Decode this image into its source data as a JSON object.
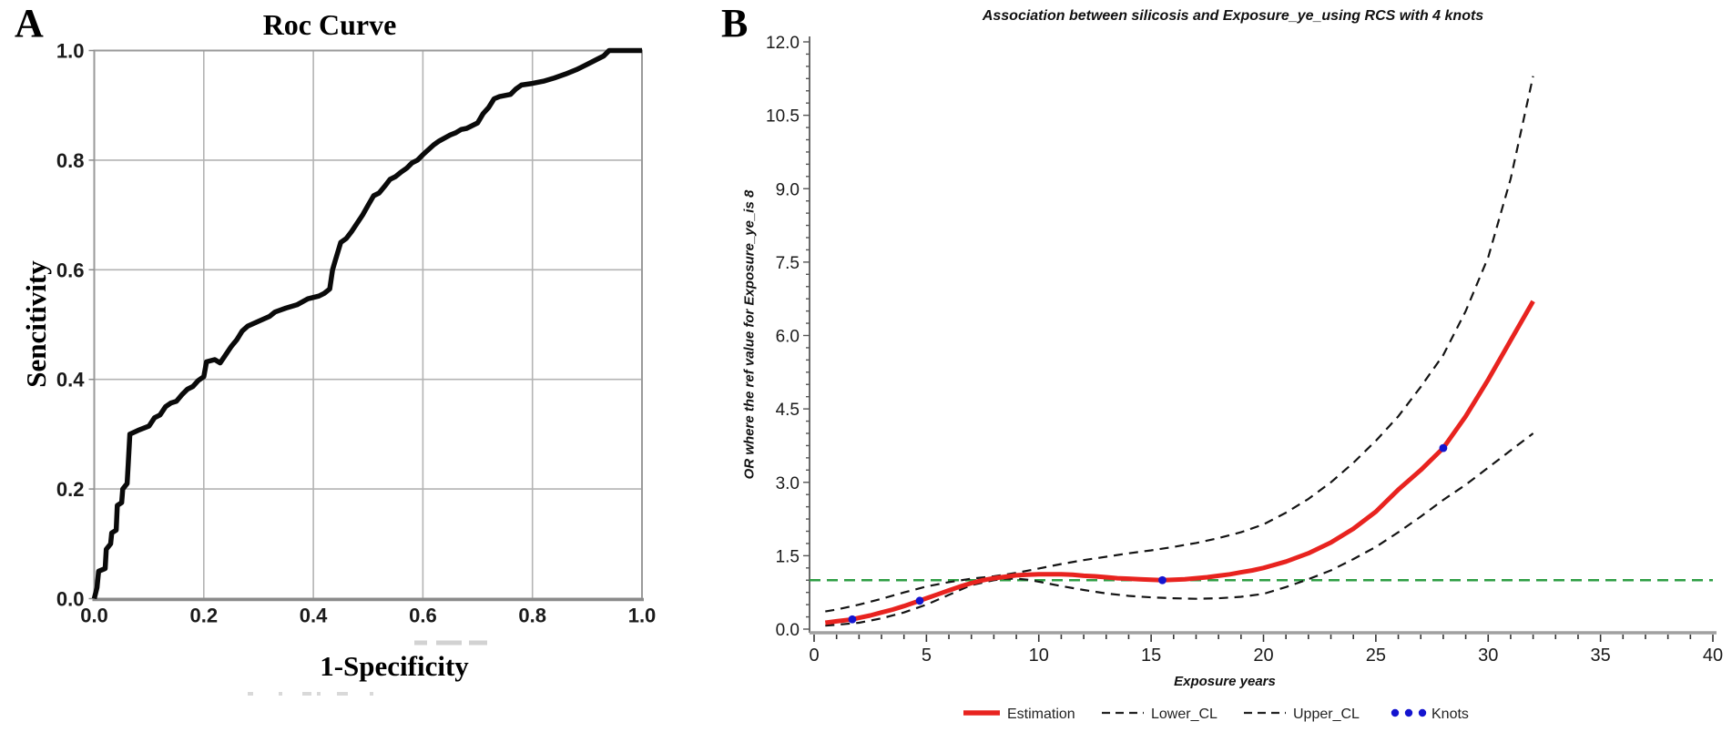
{
  "panels": {
    "a": {
      "label": "A",
      "title": "Roc Curve",
      "xlabel": "1-Specificity",
      "ylabel": "Sencitivity"
    },
    "b": {
      "label": "B",
      "title": "Association between silicosis and Exposure_ye_using RCS with 4 knots",
      "xlabel": "Exposure years",
      "ylabel": "OR where the ref value for Exposure_ye_is 8"
    }
  },
  "colors": {
    "roc_line": "#0a0a0a",
    "grid": "#b3b3b3",
    "frame": "#9a9a9a",
    "axis_dark": "#8a8a8a",
    "estimation": "#e8231f",
    "confidence": "#141414",
    "refline_green": "#2e9e44",
    "knots_blue": "#1414cf",
    "tick_text": "#1a1a1a"
  },
  "chart_data": [
    {
      "id": "roc",
      "type": "line",
      "title": "Roc Curve",
      "xlabel": "1-Specificity",
      "ylabel": "Sencitivity",
      "xlim": [
        0,
        1
      ],
      "ylim": [
        0,
        1
      ],
      "grid": true,
      "xticks": {
        "values": [
          0,
          0.2,
          0.4,
          0.6,
          0.8,
          1.0
        ],
        "labels": [
          "0.0",
          "0.2",
          "0.4",
          "0.6",
          "0.8",
          "1.0"
        ]
      },
      "yticks": {
        "values": [
          0,
          0.2,
          0.4,
          0.6,
          0.8,
          1.0
        ],
        "labels": [
          "0.0",
          "0.2",
          "0.4",
          "0.6",
          "0.8",
          "1.0"
        ]
      },
      "series": [
        {
          "name": "ROC curve",
          "color": "#0a0a0a",
          "width": 5.5,
          "points": [
            [
              0,
              0
            ],
            [
              0.005,
              0.02
            ],
            [
              0.008,
              0.05
            ],
            [
              0.02,
              0.055
            ],
            [
              0.022,
              0.09
            ],
            [
              0.03,
              0.1
            ],
            [
              0.032,
              0.12
            ],
            [
              0.04,
              0.125
            ],
            [
              0.042,
              0.17
            ],
            [
              0.05,
              0.175
            ],
            [
              0.052,
              0.2
            ],
            [
              0.06,
              0.21
            ],
            [
              0.062,
              0.245
            ],
            [
              0.065,
              0.3
            ],
            [
              0.08,
              0.307
            ],
            [
              0.1,
              0.315
            ],
            [
              0.11,
              0.33
            ],
            [
              0.12,
              0.335
            ],
            [
              0.13,
              0.35
            ],
            [
              0.14,
              0.357
            ],
            [
              0.15,
              0.36
            ],
            [
              0.16,
              0.372
            ],
            [
              0.17,
              0.382
            ],
            [
              0.18,
              0.387
            ],
            [
              0.19,
              0.398
            ],
            [
              0.2,
              0.405
            ],
            [
              0.205,
              0.432
            ],
            [
              0.22,
              0.436
            ],
            [
              0.23,
              0.43
            ],
            [
              0.24,
              0.445
            ],
            [
              0.25,
              0.46
            ],
            [
              0.26,
              0.472
            ],
            [
              0.27,
              0.488
            ],
            [
              0.28,
              0.497
            ],
            [
              0.3,
              0.506
            ],
            [
              0.32,
              0.515
            ],
            [
              0.33,
              0.523
            ],
            [
              0.35,
              0.53
            ],
            [
              0.37,
              0.536
            ],
            [
              0.39,
              0.547
            ],
            [
              0.41,
              0.552
            ],
            [
              0.42,
              0.557
            ],
            [
              0.43,
              0.565
            ],
            [
              0.435,
              0.6
            ],
            [
              0.44,
              0.617
            ],
            [
              0.45,
              0.65
            ],
            [
              0.46,
              0.657
            ],
            [
              0.47,
              0.67
            ],
            [
              0.48,
              0.685
            ],
            [
              0.49,
              0.7
            ],
            [
              0.5,
              0.718
            ],
            [
              0.51,
              0.735
            ],
            [
              0.52,
              0.74
            ],
            [
              0.53,
              0.752
            ],
            [
              0.54,
              0.765
            ],
            [
              0.55,
              0.77
            ],
            [
              0.56,
              0.778
            ],
            [
              0.57,
              0.785
            ],
            [
              0.58,
              0.795
            ],
            [
              0.59,
              0.8
            ],
            [
              0.6,
              0.81
            ],
            [
              0.62,
              0.828
            ],
            [
              0.63,
              0.835
            ],
            [
              0.65,
              0.846
            ],
            [
              0.66,
              0.85
            ],
            [
              0.67,
              0.856
            ],
            [
              0.68,
              0.858
            ],
            [
              0.7,
              0.868
            ],
            [
              0.71,
              0.885
            ],
            [
              0.72,
              0.896
            ],
            [
              0.73,
              0.912
            ],
            [
              0.74,
              0.916
            ],
            [
              0.76,
              0.92
            ],
            [
              0.77,
              0.93
            ],
            [
              0.78,
              0.937
            ],
            [
              0.8,
              0.94
            ],
            [
              0.82,
              0.944
            ],
            [
              0.84,
              0.95
            ],
            [
              0.86,
              0.957
            ],
            [
              0.88,
              0.965
            ],
            [
              0.9,
              0.975
            ],
            [
              0.92,
              0.985
            ],
            [
              0.93,
              0.99
            ],
            [
              0.94,
              1.0
            ],
            [
              1.0,
              1.0
            ]
          ]
        }
      ]
    },
    {
      "id": "rcs",
      "type": "line",
      "title": "Association between silicosis and Exposure_ye_using RCS with 4 knots",
      "xlabel": "Exposure years",
      "ylabel": "OR where the ref value for Exposure_ye_is 8",
      "xlim": [
        0,
        40
      ],
      "ylim": [
        0,
        12
      ],
      "grid": false,
      "xticks": {
        "major": [
          0,
          5,
          10,
          15,
          20,
          25,
          30,
          35,
          40
        ],
        "labels": [
          "0",
          "5",
          "10",
          "15",
          "20",
          "25",
          "30",
          "35",
          "40"
        ],
        "minor_step": 1
      },
      "yticks": {
        "major": [
          0,
          1.5,
          3,
          4.5,
          6,
          7.5,
          9,
          10.5,
          12
        ],
        "labels": [
          "0.0",
          "1.5",
          "3.0",
          "4.5",
          "6.0",
          "7.5",
          "9.0",
          "10.5",
          "12.0"
        ],
        "minor_step": 0.25
      },
      "refline": {
        "y": 1.0,
        "color": "#2e9e44",
        "dash": [
          12,
          7
        ],
        "width": 2.6
      },
      "series": [
        {
          "name": "Estimation",
          "color": "#e8231f",
          "width": 5,
          "dash": null,
          "points": [
            [
              0.5,
              0.13
            ],
            [
              1,
              0.16
            ],
            [
              1.7,
              0.2
            ],
            [
              2,
              0.23
            ],
            [
              2.5,
              0.28
            ],
            [
              3,
              0.34
            ],
            [
              3.5,
              0.4
            ],
            [
              4,
              0.47
            ],
            [
              4.7,
              0.58
            ],
            [
              5,
              0.63
            ],
            [
              5.5,
              0.71
            ],
            [
              6,
              0.79
            ],
            [
              6.5,
              0.87
            ],
            [
              7,
              0.94
            ],
            [
              7.5,
              1.0
            ],
            [
              8,
              1.04
            ],
            [
              8.5,
              1.07
            ],
            [
              9,
              1.1
            ],
            [
              9.5,
              1.11
            ],
            [
              10,
              1.12
            ],
            [
              10.5,
              1.12
            ],
            [
              11,
              1.12
            ],
            [
              11.5,
              1.11
            ],
            [
              12,
              1.09
            ],
            [
              12.5,
              1.08
            ],
            [
              13,
              1.06
            ],
            [
              13.5,
              1.04
            ],
            [
              14,
              1.03
            ],
            [
              14.5,
              1.02
            ],
            [
              15,
              1.01
            ],
            [
              15.5,
              1.0
            ],
            [
              16,
              1.01
            ],
            [
              16.5,
              1.02
            ],
            [
              17,
              1.04
            ],
            [
              17.5,
              1.06
            ],
            [
              18,
              1.09
            ],
            [
              18.5,
              1.12
            ],
            [
              19,
              1.16
            ],
            [
              19.5,
              1.2
            ],
            [
              20,
              1.25
            ],
            [
              21,
              1.38
            ],
            [
              22,
              1.55
            ],
            [
              23,
              1.77
            ],
            [
              24,
              2.05
            ],
            [
              25,
              2.4
            ],
            [
              26,
              2.85
            ],
            [
              27,
              3.25
            ],
            [
              28,
              3.7
            ],
            [
              29,
              4.35
            ],
            [
              30,
              5.1
            ],
            [
              31,
              5.9
            ],
            [
              32,
              6.7
            ]
          ]
        },
        {
          "name": "Lower_CL",
          "color": "#141414",
          "width": 2.2,
          "dash": [
            10,
            7
          ],
          "points": [
            [
              0.5,
              0.07
            ],
            [
              1,
              0.09
            ],
            [
              2,
              0.13
            ],
            [
              3,
              0.22
            ],
            [
              4,
              0.34
            ],
            [
              5,
              0.5
            ],
            [
              6,
              0.7
            ],
            [
              7,
              0.9
            ],
            [
              8,
              1.0
            ],
            [
              8.5,
              1.03
            ],
            [
              9,
              1.03
            ],
            [
              9.5,
              1.01
            ],
            [
              10,
              0.97
            ],
            [
              11,
              0.88
            ],
            [
              12,
              0.8
            ],
            [
              13,
              0.73
            ],
            [
              14,
              0.68
            ],
            [
              15,
              0.65
            ],
            [
              16,
              0.63
            ],
            [
              17,
              0.62
            ],
            [
              18,
              0.63
            ],
            [
              19,
              0.66
            ],
            [
              20,
              0.72
            ],
            [
              21,
              0.86
            ],
            [
              22,
              1.02
            ],
            [
              23,
              1.2
            ],
            [
              24,
              1.43
            ],
            [
              25,
              1.68
            ],
            [
              26,
              1.98
            ],
            [
              27,
              2.3
            ],
            [
              28,
              2.64
            ],
            [
              29,
              2.95
            ],
            [
              30,
              3.3
            ],
            [
              31,
              3.65
            ],
            [
              32,
              4.0
            ]
          ]
        },
        {
          "name": "Upper_CL",
          "color": "#141414",
          "width": 2.2,
          "dash": [
            10,
            7
          ],
          "points": [
            [
              0.5,
              0.36
            ],
            [
              1,
              0.4
            ],
            [
              2,
              0.5
            ],
            [
              3,
              0.62
            ],
            [
              4,
              0.75
            ],
            [
              5,
              0.87
            ],
            [
              6,
              0.96
            ],
            [
              7,
              1.03
            ],
            [
              8,
              1.08
            ],
            [
              9,
              1.15
            ],
            [
              10,
              1.24
            ],
            [
              11,
              1.33
            ],
            [
              12,
              1.41
            ],
            [
              13,
              1.48
            ],
            [
              14,
              1.55
            ],
            [
              15,
              1.61
            ],
            [
              16,
              1.68
            ],
            [
              17,
              1.76
            ],
            [
              18,
              1.86
            ],
            [
              19,
              1.98
            ],
            [
              20,
              2.14
            ],
            [
              21,
              2.38
            ],
            [
              22,
              2.66
            ],
            [
              23,
              3.0
            ],
            [
              24,
              3.4
            ],
            [
              25,
              3.85
            ],
            [
              26,
              4.35
            ],
            [
              27,
              4.95
            ],
            [
              28,
              5.6
            ],
            [
              29,
              6.5
            ],
            [
              30,
              7.6
            ],
            [
              31,
              9.2
            ],
            [
              32,
              11.3
            ]
          ]
        }
      ],
      "knots": {
        "name": "Knots",
        "color": "#1414cf",
        "radius": 4.4,
        "points": [
          [
            1.7,
            0.2
          ],
          [
            4.7,
            0.58
          ],
          [
            15.5,
            1.0
          ],
          [
            28,
            3.7
          ]
        ]
      },
      "legend": [
        {
          "label": "Estimation",
          "swatch": "red-line"
        },
        {
          "label": "Lower_CL",
          "swatch": "dash"
        },
        {
          "label": "Upper_CL",
          "swatch": "dash"
        },
        {
          "label": "Knots",
          "swatch": "dots"
        }
      ]
    }
  ]
}
